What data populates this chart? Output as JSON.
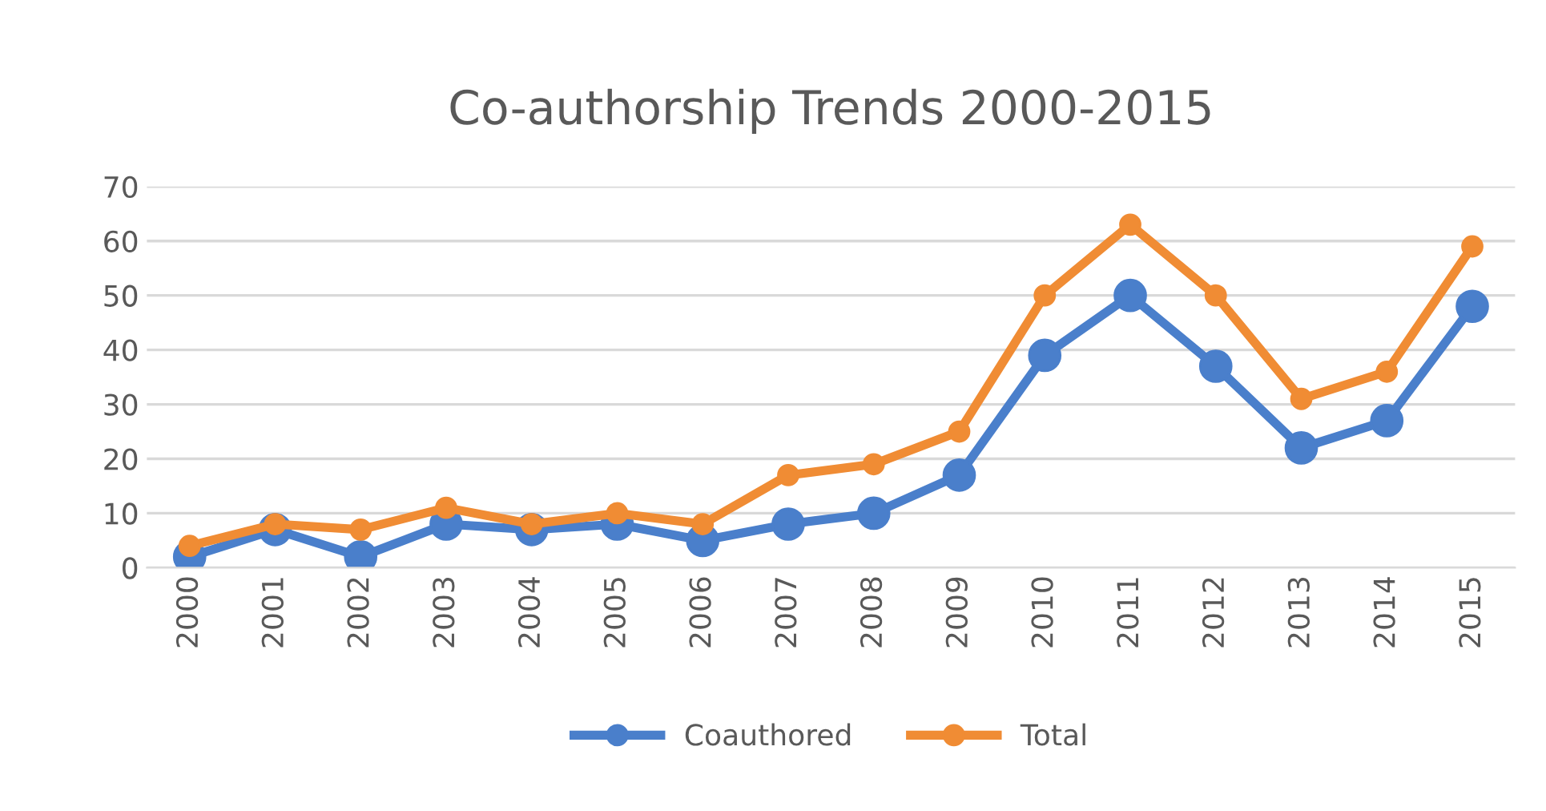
{
  "chart_data": {
    "type": "line",
    "title": "Co-authorship Trends 2000-2015",
    "categories": [
      "2000",
      "2001",
      "2002",
      "2003",
      "2004",
      "2005",
      "2006",
      "2007",
      "2008",
      "2009",
      "2010",
      "2011",
      "2012",
      "2013",
      "2014",
      "2015"
    ],
    "series": [
      {
        "name": "Coauthored",
        "color": "#4a7fcb",
        "values": [
          2,
          7,
          2,
          8,
          7,
          8,
          5,
          8,
          10,
          17,
          39,
          50,
          37,
          22,
          27,
          48
        ]
      },
      {
        "name": "Total",
        "color": "#f08c34",
        "values": [
          4,
          8,
          7,
          11,
          8,
          10,
          8,
          17,
          19,
          25,
          50,
          63,
          50,
          31,
          36,
          59
        ]
      }
    ],
    "ylim": [
      0,
      70
    ],
    "yticks": [
      0,
      10,
      20,
      30,
      40,
      50,
      60,
      70
    ],
    "grid": "y",
    "legend": "bottom",
    "marker": "circle",
    "line_style": "solid"
  }
}
